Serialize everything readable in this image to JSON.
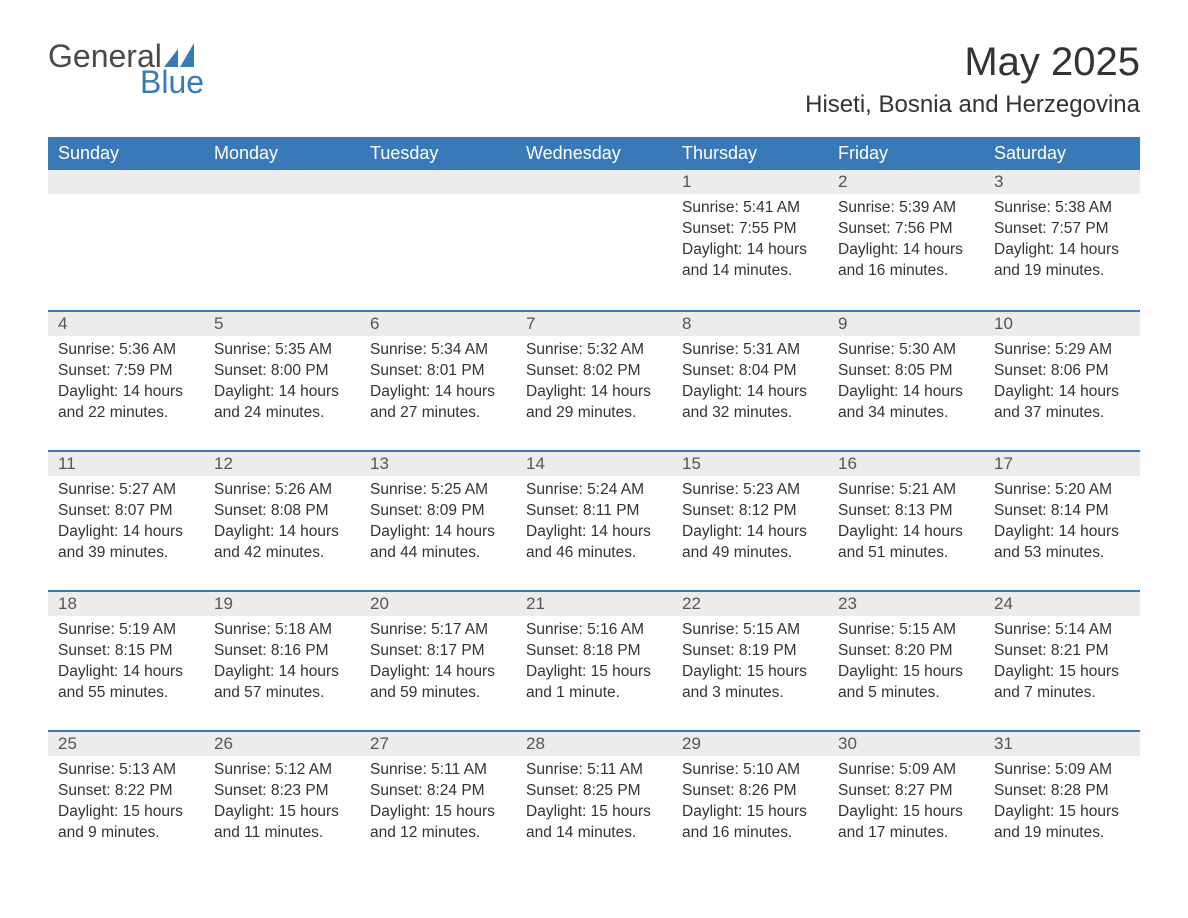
{
  "logo": {
    "word1": "General",
    "word2": "Blue",
    "brand_color": "#3a79b7",
    "text_color": "#4a4a4a"
  },
  "title": "May 2025",
  "location": "Hiseti, Bosnia and Herzegovina",
  "colors": {
    "header_bg": "#3a79b7",
    "header_text": "#ffffff",
    "daynum_bg": "#ececec",
    "row_border": "#3a79b7",
    "body_text": "#333333",
    "background": "#ffffff"
  },
  "fonts": {
    "title_size_pt": 30,
    "location_size_pt": 18,
    "header_size_pt": 14,
    "cell_size_pt": 12
  },
  "weekdays": [
    "Sunday",
    "Monday",
    "Tuesday",
    "Wednesday",
    "Thursday",
    "Friday",
    "Saturday"
  ],
  "weeks": [
    [
      null,
      null,
      null,
      null,
      {
        "day": "1",
        "sunrise": "Sunrise: 5:41 AM",
        "sunset": "Sunset: 7:55 PM",
        "daylight": "Daylight: 14 hours and 14 minutes."
      },
      {
        "day": "2",
        "sunrise": "Sunrise: 5:39 AM",
        "sunset": "Sunset: 7:56 PM",
        "daylight": "Daylight: 14 hours and 16 minutes."
      },
      {
        "day": "3",
        "sunrise": "Sunrise: 5:38 AM",
        "sunset": "Sunset: 7:57 PM",
        "daylight": "Daylight: 14 hours and 19 minutes."
      }
    ],
    [
      {
        "day": "4",
        "sunrise": "Sunrise: 5:36 AM",
        "sunset": "Sunset: 7:59 PM",
        "daylight": "Daylight: 14 hours and 22 minutes."
      },
      {
        "day": "5",
        "sunrise": "Sunrise: 5:35 AM",
        "sunset": "Sunset: 8:00 PM",
        "daylight": "Daylight: 14 hours and 24 minutes."
      },
      {
        "day": "6",
        "sunrise": "Sunrise: 5:34 AM",
        "sunset": "Sunset: 8:01 PM",
        "daylight": "Daylight: 14 hours and 27 minutes."
      },
      {
        "day": "7",
        "sunrise": "Sunrise: 5:32 AM",
        "sunset": "Sunset: 8:02 PM",
        "daylight": "Daylight: 14 hours and 29 minutes."
      },
      {
        "day": "8",
        "sunrise": "Sunrise: 5:31 AM",
        "sunset": "Sunset: 8:04 PM",
        "daylight": "Daylight: 14 hours and 32 minutes."
      },
      {
        "day": "9",
        "sunrise": "Sunrise: 5:30 AM",
        "sunset": "Sunset: 8:05 PM",
        "daylight": "Daylight: 14 hours and 34 minutes."
      },
      {
        "day": "10",
        "sunrise": "Sunrise: 5:29 AM",
        "sunset": "Sunset: 8:06 PM",
        "daylight": "Daylight: 14 hours and 37 minutes."
      }
    ],
    [
      {
        "day": "11",
        "sunrise": "Sunrise: 5:27 AM",
        "sunset": "Sunset: 8:07 PM",
        "daylight": "Daylight: 14 hours and 39 minutes."
      },
      {
        "day": "12",
        "sunrise": "Sunrise: 5:26 AM",
        "sunset": "Sunset: 8:08 PM",
        "daylight": "Daylight: 14 hours and 42 minutes."
      },
      {
        "day": "13",
        "sunrise": "Sunrise: 5:25 AM",
        "sunset": "Sunset: 8:09 PM",
        "daylight": "Daylight: 14 hours and 44 minutes."
      },
      {
        "day": "14",
        "sunrise": "Sunrise: 5:24 AM",
        "sunset": "Sunset: 8:11 PM",
        "daylight": "Daylight: 14 hours and 46 minutes."
      },
      {
        "day": "15",
        "sunrise": "Sunrise: 5:23 AM",
        "sunset": "Sunset: 8:12 PM",
        "daylight": "Daylight: 14 hours and 49 minutes."
      },
      {
        "day": "16",
        "sunrise": "Sunrise: 5:21 AM",
        "sunset": "Sunset: 8:13 PM",
        "daylight": "Daylight: 14 hours and 51 minutes."
      },
      {
        "day": "17",
        "sunrise": "Sunrise: 5:20 AM",
        "sunset": "Sunset: 8:14 PM",
        "daylight": "Daylight: 14 hours and 53 minutes."
      }
    ],
    [
      {
        "day": "18",
        "sunrise": "Sunrise: 5:19 AM",
        "sunset": "Sunset: 8:15 PM",
        "daylight": "Daylight: 14 hours and 55 minutes."
      },
      {
        "day": "19",
        "sunrise": "Sunrise: 5:18 AM",
        "sunset": "Sunset: 8:16 PM",
        "daylight": "Daylight: 14 hours and 57 minutes."
      },
      {
        "day": "20",
        "sunrise": "Sunrise: 5:17 AM",
        "sunset": "Sunset: 8:17 PM",
        "daylight": "Daylight: 14 hours and 59 minutes."
      },
      {
        "day": "21",
        "sunrise": "Sunrise: 5:16 AM",
        "sunset": "Sunset: 8:18 PM",
        "daylight": "Daylight: 15 hours and 1 minute."
      },
      {
        "day": "22",
        "sunrise": "Sunrise: 5:15 AM",
        "sunset": "Sunset: 8:19 PM",
        "daylight": "Daylight: 15 hours and 3 minutes."
      },
      {
        "day": "23",
        "sunrise": "Sunrise: 5:15 AM",
        "sunset": "Sunset: 8:20 PM",
        "daylight": "Daylight: 15 hours and 5 minutes."
      },
      {
        "day": "24",
        "sunrise": "Sunrise: 5:14 AM",
        "sunset": "Sunset: 8:21 PM",
        "daylight": "Daylight: 15 hours and 7 minutes."
      }
    ],
    [
      {
        "day": "25",
        "sunrise": "Sunrise: 5:13 AM",
        "sunset": "Sunset: 8:22 PM",
        "daylight": "Daylight: 15 hours and 9 minutes."
      },
      {
        "day": "26",
        "sunrise": "Sunrise: 5:12 AM",
        "sunset": "Sunset: 8:23 PM",
        "daylight": "Daylight: 15 hours and 11 minutes."
      },
      {
        "day": "27",
        "sunrise": "Sunrise: 5:11 AM",
        "sunset": "Sunset: 8:24 PM",
        "daylight": "Daylight: 15 hours and 12 minutes."
      },
      {
        "day": "28",
        "sunrise": "Sunrise: 5:11 AM",
        "sunset": "Sunset: 8:25 PM",
        "daylight": "Daylight: 15 hours and 14 minutes."
      },
      {
        "day": "29",
        "sunrise": "Sunrise: 5:10 AM",
        "sunset": "Sunset: 8:26 PM",
        "daylight": "Daylight: 15 hours and 16 minutes."
      },
      {
        "day": "30",
        "sunrise": "Sunrise: 5:09 AM",
        "sunset": "Sunset: 8:27 PM",
        "daylight": "Daylight: 15 hours and 17 minutes."
      },
      {
        "day": "31",
        "sunrise": "Sunrise: 5:09 AM",
        "sunset": "Sunset: 8:28 PM",
        "daylight": "Daylight: 15 hours and 19 minutes."
      }
    ]
  ]
}
